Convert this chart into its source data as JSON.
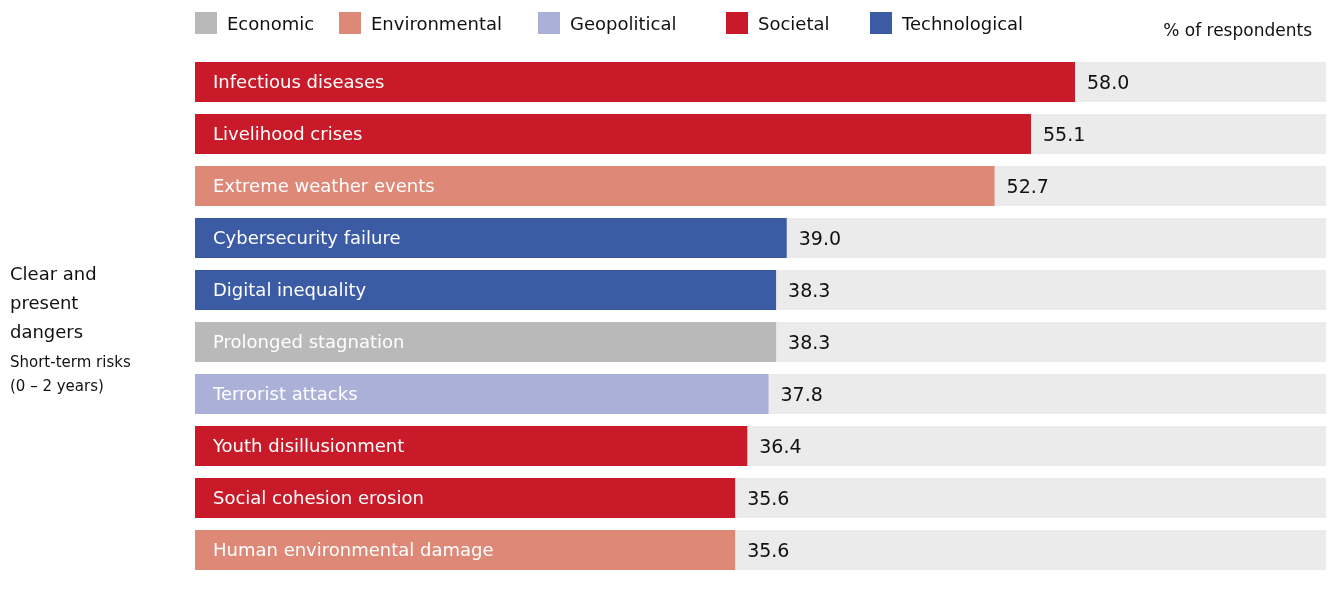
{
  "chart_data": {
    "type": "bar",
    "orientation": "horizontal",
    "title": "Clear and present dangers",
    "subtitle": "Short-term risks (0 – 2 years)",
    "annotations": [
      "% of respondents"
    ],
    "legend": "top",
    "categories": [
      "Infectious diseases",
      "Livelihood crises",
      "Extreme weather events",
      "Cybersecurity failure",
      "Digital inequality",
      "Prolonged stagnation",
      "Terrorist attacks",
      "Youth disillusionment",
      "Social cohesion erosion",
      "Human environmental damage"
    ],
    "series": [
      {
        "name": "Economic",
        "color": "#b9b9b9",
        "values": [
          null,
          null,
          null,
          null,
          null,
          38.3,
          null,
          null,
          null,
          null
        ],
        "value_labels": [
          null,
          null,
          null,
          null,
          null,
          "38.3",
          null,
          null,
          null,
          null
        ]
      },
      {
        "name": "Environmental",
        "color": "#de8877",
        "values": [
          null,
          null,
          52.7,
          null,
          null,
          null,
          null,
          null,
          null,
          35.6
        ],
        "value_labels": [
          null,
          null,
          "52.7",
          null,
          null,
          null,
          null,
          null,
          null,
          "35.6"
        ]
      },
      {
        "name": "Geopolitical",
        "color": "#aab0d8",
        "values": [
          null,
          null,
          null,
          null,
          null,
          null,
          37.8,
          null,
          null,
          null
        ],
        "value_labels": [
          null,
          null,
          null,
          null,
          null,
          null,
          "37.8",
          null,
          null,
          null
        ]
      },
      {
        "name": "Societal",
        "color": "#c81a28",
        "values": [
          58.0,
          55.1,
          null,
          null,
          null,
          null,
          null,
          36.4,
          35.6,
          null
        ],
        "value_labels": [
          "58.0",
          "55.1",
          null,
          null,
          null,
          null,
          null,
          "36.4",
          "35.6",
          null
        ]
      },
      {
        "name": "Technological",
        "color": "#3b5ba5",
        "values": [
          null,
          null,
          null,
          39.0,
          38.3,
          null,
          null,
          null,
          null,
          null
        ],
        "value_labels": [
          null,
          null,
          null,
          "39.0",
          "38.3",
          null,
          null,
          null,
          null,
          null
        ]
      }
    ]
  }
}
